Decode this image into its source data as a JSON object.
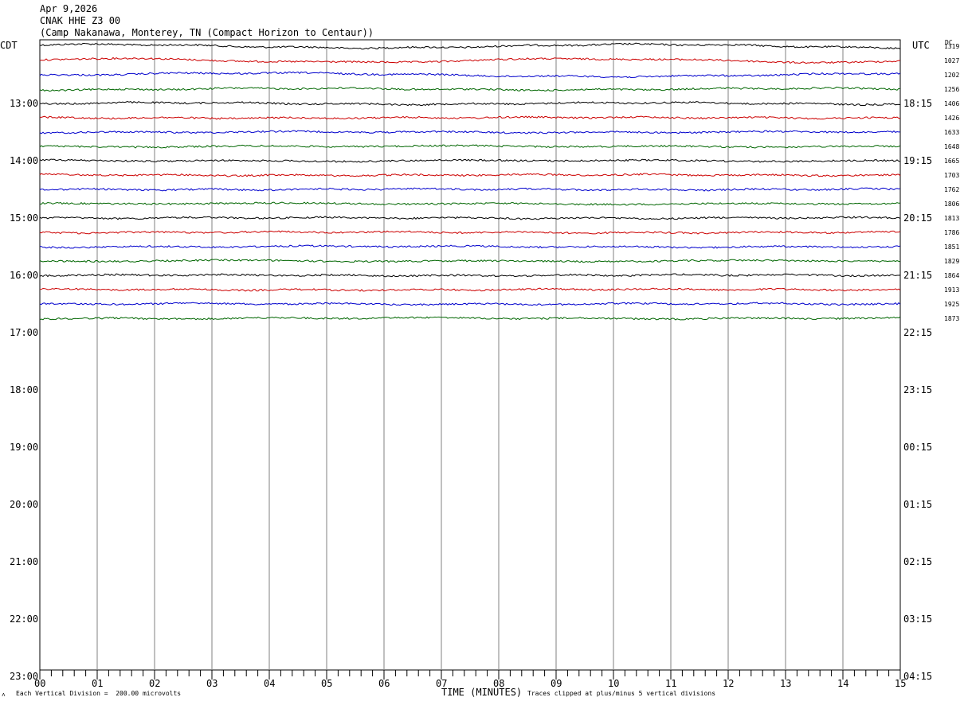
{
  "header": {
    "date": "Apr 9,2026",
    "station": "CNAK HHE Z3 00",
    "location": "(Camp Nakanawa, Monterey, TN (Compact Horizon to Centaur))"
  },
  "chart_data": {
    "type": "line",
    "title": "",
    "left_axis_label": "CDT",
    "right_axis_label": "UTC",
    "dc_label": "DC",
    "xlabel": "TIME (MINUTES)",
    "xlim": [
      0,
      15
    ],
    "x_ticks": [
      "00",
      "01",
      "02",
      "03",
      "04",
      "05",
      "06",
      "07",
      "08",
      "09",
      "10",
      "11",
      "12",
      "13",
      "14",
      "15"
    ],
    "left_hour_labels": [
      "13:00",
      "14:00",
      "15:00",
      "16:00",
      "17:00",
      "18:00",
      "19:00",
      "20:00",
      "21:00",
      "22:00",
      "23:00"
    ],
    "right_hour_labels": [
      "18:15",
      "19:15",
      "20:15",
      "21:15",
      "22:15",
      "23:15",
      "00:15",
      "01:15",
      "02:15",
      "03:15",
      "04:15"
    ],
    "row_minutes": 15,
    "rows_total": 44,
    "trace_colors": [
      "#000000",
      "#cc0000",
      "#0000cc",
      "#006600"
    ],
    "dc_offsets": [
      "1319",
      "1027",
      "1202",
      "1256",
      "1406",
      "1426",
      "1633",
      "1648",
      "1665",
      "1703",
      "1762",
      "1806",
      "1813",
      "1786",
      "1851",
      "1829",
      "1864",
      "1913",
      "1925",
      "1873"
    ],
    "grid": true,
    "footer_left": "Each Vertical Division =  200.00 microvolts",
    "footer_right": "Traces clipped at plus/minus 5 vertical divisions"
  }
}
